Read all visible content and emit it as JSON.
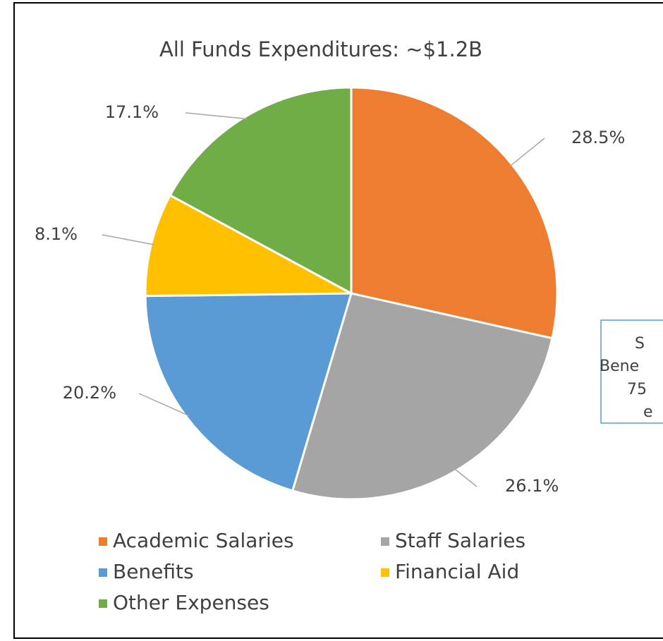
{
  "chart_data": {
    "type": "pie",
    "title": "All Funds Expenditures: ~$1.2B",
    "categories": [
      "Academic Salaries",
      "Staff Salaries",
      "Benefits",
      "Financial Aid",
      "Other Expenses"
    ],
    "values": [
      28.5,
      26.1,
      20.2,
      8.1,
      17.1
    ],
    "value_labels": [
      "28.5%",
      "26.1%",
      "20.2%",
      "8.1%",
      "17.1%"
    ],
    "colors": [
      "#ed7d31",
      "#a5a5a5",
      "#5b9bd5",
      "#ffc000",
      "#70ad47"
    ],
    "legend": "bottom",
    "annotation": {
      "lines": [
        "S",
        "Bene",
        "75",
        "e"
      ]
    }
  }
}
